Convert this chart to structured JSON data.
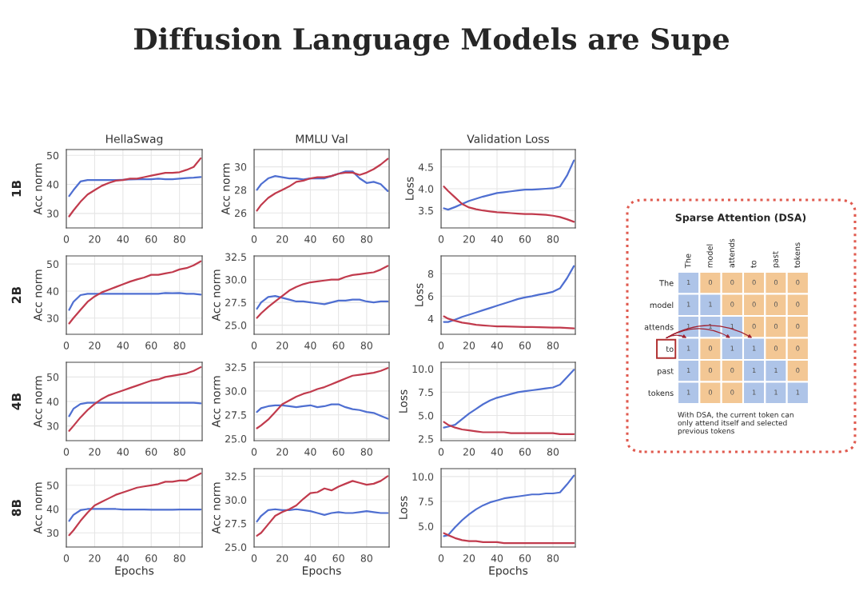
{
  "chart_data": [
    {
      "type": "other",
      "title": "Diffusion Language Models are Supe"
    },
    {
      "type": "line",
      "title": "HellaSwag",
      "ylabel": "Acc norm",
      "annotations": [
        "1B"
      ],
      "xlim": [
        0,
        96
      ],
      "xticks": [
        0,
        20,
        40,
        60,
        80
      ],
      "ylim": [
        25,
        52
      ],
      "yticks": [
        30,
        40,
        50
      ],
      "grid": true,
      "series": [
        {
          "color": "#4f6fd1",
          "x": [
            2,
            5,
            10,
            15,
            20,
            25,
            30,
            35,
            40,
            45,
            50,
            55,
            60,
            65,
            70,
            75,
            80,
            85,
            90,
            95
          ],
          "values": [
            36,
            38,
            41,
            41.5,
            41.5,
            41.5,
            41.5,
            41.5,
            41.6,
            41.7,
            41.8,
            41.8,
            41.8,
            42,
            41.8,
            41.8,
            42,
            42.2,
            42.3,
            42.5
          ]
        },
        {
          "color": "#c13b4d",
          "x": [
            2,
            5,
            10,
            15,
            20,
            25,
            30,
            35,
            40,
            45,
            50,
            55,
            60,
            65,
            70,
            75,
            80,
            85,
            90,
            95
          ],
          "values": [
            29,
            31,
            34,
            36.5,
            38,
            39.5,
            40.5,
            41.3,
            41.5,
            42,
            42,
            42.5,
            43,
            43.5,
            44,
            44,
            44.2,
            45,
            46,
            49
          ]
        }
      ]
    },
    {
      "type": "line",
      "title": "MMLU Val",
      "ylabel": "Acc norm",
      "xlim": [
        0,
        96
      ],
      "xticks": [
        0,
        20,
        40,
        60,
        80
      ],
      "ylim": [
        24.7,
        31.5
      ],
      "yticks": [
        26,
        28,
        30
      ],
      "grid": true,
      "series": [
        {
          "color": "#4f6fd1",
          "x": [
            2,
            5,
            10,
            15,
            20,
            25,
            30,
            35,
            40,
            45,
            50,
            55,
            60,
            65,
            70,
            75,
            80,
            85,
            90,
            95
          ],
          "values": [
            28.0,
            28.5,
            29.0,
            29.2,
            29.1,
            29.0,
            29.0,
            28.9,
            29.0,
            29.0,
            29.0,
            29.2,
            29.4,
            29.6,
            29.6,
            29.0,
            28.6,
            28.7,
            28.5,
            27.9
          ]
        },
        {
          "color": "#c13b4d",
          "x": [
            2,
            5,
            10,
            15,
            20,
            25,
            30,
            35,
            40,
            45,
            50,
            55,
            60,
            65,
            70,
            75,
            80,
            85,
            90,
            95
          ],
          "values": [
            26.2,
            26.7,
            27.3,
            27.7,
            28.0,
            28.3,
            28.7,
            28.8,
            29.0,
            29.1,
            29.1,
            29.2,
            29.4,
            29.5,
            29.5,
            29.3,
            29.5,
            29.8,
            30.2,
            30.7
          ]
        }
      ]
    },
    {
      "type": "line",
      "title": "Validation Loss",
      "ylabel": "Loss",
      "xlim": [
        0,
        96
      ],
      "xticks": [
        0,
        20,
        40,
        60,
        80
      ],
      "ylim": [
        3.1,
        4.9
      ],
      "yticks": [
        3.5,
        {
          "value": 4,
          "label": "4.0"
        },
        4.5
      ],
      "grid": true,
      "series": [
        {
          "color": "#4f6fd1",
          "x": [
            2,
            5,
            10,
            15,
            20,
            25,
            30,
            35,
            40,
            45,
            50,
            55,
            60,
            65,
            70,
            75,
            80,
            85,
            90,
            95
          ],
          "values": [
            3.55,
            3.52,
            3.58,
            3.65,
            3.72,
            3.77,
            3.82,
            3.86,
            3.9,
            3.92,
            3.94,
            3.96,
            3.98,
            3.98,
            3.99,
            4.0,
            4.01,
            4.05,
            4.3,
            4.65
          ]
        },
        {
          "color": "#c13b4d",
          "x": [
            2,
            5,
            10,
            15,
            20,
            25,
            30,
            35,
            40,
            45,
            50,
            55,
            60,
            65,
            70,
            75,
            80,
            85,
            90,
            95
          ],
          "values": [
            4.05,
            3.95,
            3.8,
            3.65,
            3.57,
            3.53,
            3.5,
            3.48,
            3.46,
            3.45,
            3.44,
            3.43,
            3.42,
            3.42,
            3.41,
            3.4,
            3.38,
            3.35,
            3.3,
            3.24
          ]
        }
      ]
    },
    {
      "type": "line",
      "ylabel": "Acc norm",
      "annotations": [
        "2B"
      ],
      "xlim": [
        0,
        96
      ],
      "xticks": [
        0,
        20,
        40,
        60,
        80
      ],
      "ylim": [
        24,
        53
      ],
      "yticks": [
        30,
        40,
        50
      ],
      "grid": true,
      "series": [
        {
          "color": "#4f6fd1",
          "x": [
            2,
            5,
            10,
            15,
            20,
            25,
            30,
            35,
            40,
            45,
            50,
            55,
            60,
            65,
            70,
            75,
            80,
            85,
            90,
            95
          ],
          "values": [
            33,
            36,
            38.5,
            39,
            39,
            39,
            39,
            39,
            39,
            39,
            39,
            39,
            39,
            39,
            39.3,
            39.2,
            39.3,
            39,
            39,
            38.7
          ]
        },
        {
          "color": "#c13b4d",
          "x": [
            2,
            5,
            10,
            15,
            20,
            25,
            30,
            35,
            40,
            45,
            50,
            55,
            60,
            65,
            70,
            75,
            80,
            85,
            90,
            95
          ],
          "values": [
            28,
            30,
            33,
            36,
            38,
            39.5,
            40.5,
            41.5,
            42.5,
            43.5,
            44.3,
            45,
            46,
            46,
            46.5,
            47,
            48,
            48.5,
            49.5,
            51
          ]
        }
      ]
    },
    {
      "type": "line",
      "ylabel": "Acc norm",
      "xlim": [
        0,
        96
      ],
      "xticks": [
        0,
        20,
        40,
        60,
        80
      ],
      "ylim": [
        24,
        32.6
      ],
      "yticks": [
        {
          "value": 25,
          "label": "25.0"
        },
        27.5,
        {
          "value": 30,
          "label": "30.0"
        },
        32.5
      ],
      "grid": true,
      "series": [
        {
          "color": "#4f6fd1",
          "x": [
            2,
            5,
            10,
            15,
            20,
            25,
            30,
            35,
            40,
            45,
            50,
            55,
            60,
            65,
            70,
            75,
            80,
            85,
            90,
            95
          ],
          "values": [
            26.8,
            27.5,
            28.1,
            28.2,
            28.0,
            27.8,
            27.6,
            27.6,
            27.5,
            27.4,
            27.3,
            27.5,
            27.7,
            27.7,
            27.8,
            27.8,
            27.6,
            27.5,
            27.6,
            27.6
          ]
        },
        {
          "color": "#c13b4d",
          "x": [
            2,
            5,
            10,
            15,
            20,
            25,
            30,
            35,
            40,
            45,
            50,
            55,
            60,
            65,
            70,
            75,
            80,
            85,
            90,
            95
          ],
          "values": [
            25.8,
            26.3,
            27.0,
            27.6,
            28.2,
            28.8,
            29.2,
            29.5,
            29.7,
            29.8,
            29.9,
            30.0,
            30.0,
            30.3,
            30.5,
            30.6,
            30.7,
            30.8,
            31.1,
            31.5
          ]
        }
      ]
    },
    {
      "type": "line",
      "ylabel": "Loss",
      "xlim": [
        0,
        96
      ],
      "xticks": [
        0,
        20,
        40,
        60,
        80
      ],
      "ylim": [
        2.6,
        9.6
      ],
      "yticks": [
        4,
        6,
        8
      ],
      "grid": true,
      "series": [
        {
          "color": "#4f6fd1",
          "x": [
            2,
            5,
            10,
            15,
            20,
            25,
            30,
            35,
            40,
            45,
            50,
            55,
            60,
            65,
            70,
            75,
            80,
            85,
            90,
            95
          ],
          "values": [
            3.7,
            3.7,
            3.9,
            4.15,
            4.35,
            4.55,
            4.75,
            4.95,
            5.15,
            5.35,
            5.55,
            5.75,
            5.9,
            6.0,
            6.15,
            6.25,
            6.4,
            6.7,
            7.6,
            8.7
          ]
        },
        {
          "color": "#c13b4d",
          "x": [
            2,
            5,
            10,
            15,
            20,
            25,
            30,
            35,
            40,
            45,
            50,
            55,
            60,
            65,
            70,
            75,
            80,
            85,
            90,
            95
          ],
          "values": [
            4.2,
            4.0,
            3.8,
            3.65,
            3.55,
            3.45,
            3.4,
            3.35,
            3.3,
            3.3,
            3.28,
            3.27,
            3.25,
            3.25,
            3.23,
            3.22,
            3.2,
            3.2,
            3.17,
            3.12
          ]
        }
      ]
    },
    {
      "type": "line",
      "ylabel": "Acc norm",
      "annotations": [
        "4B"
      ],
      "xlim": [
        0,
        96
      ],
      "xticks": [
        0,
        20,
        40,
        60,
        80
      ],
      "ylim": [
        24,
        56
      ],
      "yticks": [
        30,
        40,
        50
      ],
      "grid": true,
      "series": [
        {
          "color": "#4f6fd1",
          "x": [
            2,
            5,
            10,
            15,
            20,
            25,
            30,
            35,
            40,
            45,
            50,
            55,
            60,
            65,
            70,
            75,
            80,
            85,
            90,
            95
          ],
          "values": [
            34,
            37,
            39,
            39.5,
            39.5,
            39.5,
            39.5,
            39.5,
            39.5,
            39.5,
            39.5,
            39.5,
            39.5,
            39.5,
            39.5,
            39.5,
            39.5,
            39.5,
            39.5,
            39.2
          ]
        },
        {
          "color": "#c13b4d",
          "x": [
            2,
            5,
            10,
            15,
            20,
            25,
            30,
            35,
            40,
            45,
            50,
            55,
            60,
            65,
            70,
            75,
            80,
            85,
            90,
            95
          ],
          "values": [
            28,
            30,
            33.5,
            36.5,
            39,
            41,
            42.5,
            43.5,
            44.5,
            45.5,
            46.5,
            47.5,
            48.5,
            49,
            50,
            50.5,
            51,
            51.5,
            52.5,
            54
          ]
        }
      ]
    },
    {
      "type": "line",
      "ylabel": "Acc norm",
      "xlim": [
        0,
        96
      ],
      "xticks": [
        0,
        20,
        40,
        60,
        80
      ],
      "ylim": [
        24.8,
        33.0
      ],
      "yticks": [
        {
          "value": 25,
          "label": "25.0"
        },
        27.5,
        {
          "value": 30,
          "label": "30.0"
        },
        32.5
      ],
      "grid": true,
      "series": [
        {
          "color": "#4f6fd1",
          "x": [
            2,
            5,
            10,
            15,
            20,
            25,
            30,
            35,
            40,
            45,
            50,
            55,
            60,
            65,
            70,
            75,
            80,
            85,
            90,
            95
          ],
          "values": [
            27.8,
            28.2,
            28.4,
            28.5,
            28.5,
            28.4,
            28.3,
            28.4,
            28.5,
            28.3,
            28.4,
            28.6,
            28.6,
            28.3,
            28.1,
            28.0,
            27.8,
            27.7,
            27.4,
            27.1
          ]
        },
        {
          "color": "#c13b4d",
          "x": [
            2,
            5,
            10,
            15,
            20,
            25,
            30,
            35,
            40,
            45,
            50,
            55,
            60,
            65,
            70,
            75,
            80,
            85,
            90,
            95
          ],
          "values": [
            26.1,
            26.4,
            27.0,
            27.8,
            28.6,
            29.0,
            29.4,
            29.7,
            29.9,
            30.2,
            30.4,
            30.7,
            31.0,
            31.3,
            31.6,
            31.7,
            31.8,
            31.9,
            32.1,
            32.4
          ]
        }
      ]
    },
    {
      "type": "line",
      "ylabel": "Loss",
      "xlim": [
        0,
        96
      ],
      "xticks": [
        0,
        20,
        40,
        60,
        80
      ],
      "ylim": [
        2.3,
        10.7
      ],
      "yticks": [
        2.5,
        {
          "value": 5,
          "label": "5.0"
        },
        7.5,
        {
          "value": 10,
          "label": "10.0"
        }
      ],
      "grid": true,
      "series": [
        {
          "color": "#4f6fd1",
          "x": [
            2,
            5,
            10,
            15,
            20,
            25,
            30,
            35,
            40,
            45,
            50,
            55,
            60,
            65,
            70,
            75,
            80,
            85,
            90,
            95
          ],
          "values": [
            3.7,
            3.8,
            4.0,
            4.6,
            5.2,
            5.7,
            6.2,
            6.6,
            6.9,
            7.1,
            7.3,
            7.5,
            7.6,
            7.7,
            7.8,
            7.9,
            8.0,
            8.3,
            9.1,
            9.9
          ]
        },
        {
          "color": "#c13b4d",
          "x": [
            2,
            5,
            10,
            15,
            20,
            25,
            30,
            35,
            40,
            45,
            50,
            55,
            60,
            65,
            70,
            75,
            80,
            85,
            90,
            95
          ],
          "values": [
            4.3,
            4.0,
            3.7,
            3.5,
            3.4,
            3.3,
            3.2,
            3.2,
            3.2,
            3.2,
            3.1,
            3.1,
            3.1,
            3.1,
            3.1,
            3.1,
            3.1,
            3.0,
            3.0,
            3.0
          ]
        }
      ]
    },
    {
      "type": "line",
      "ylabel": "Acc norm",
      "xlabel": "Epochs",
      "annotations": [
        "8B"
      ],
      "xlim": [
        0,
        96
      ],
      "xticks": [
        0,
        20,
        40,
        60,
        80
      ],
      "ylim": [
        24,
        57
      ],
      "yticks": [
        30,
        40,
        50
      ],
      "grid": true,
      "series": [
        {
          "color": "#4f6fd1",
          "x": [
            2,
            5,
            10,
            15,
            20,
            25,
            30,
            35,
            40,
            45,
            50,
            55,
            60,
            65,
            70,
            75,
            80,
            85,
            90,
            95
          ],
          "values": [
            35,
            37.5,
            39.5,
            40,
            40,
            40,
            40,
            40,
            39.8,
            39.8,
            39.8,
            39.8,
            39.7,
            39.7,
            39.7,
            39.7,
            39.8,
            39.8,
            39.8,
            39.8
          ]
        },
        {
          "color": "#c13b4d",
          "x": [
            2,
            5,
            10,
            15,
            20,
            25,
            30,
            35,
            40,
            45,
            50,
            55,
            60,
            65,
            70,
            75,
            80,
            85,
            90,
            95
          ],
          "values": [
            29,
            31,
            35,
            38.5,
            41.5,
            43,
            44.5,
            46,
            47,
            48,
            49,
            49.5,
            50,
            50.5,
            51.5,
            51.5,
            52,
            52,
            53.5,
            55
          ]
        }
      ]
    },
    {
      "type": "line",
      "ylabel": "Acc norm",
      "xlabel": "Epochs",
      "xlim": [
        0,
        96
      ],
      "xticks": [
        0,
        20,
        40,
        60,
        80
      ],
      "ylim": [
        25.0,
        33.3
      ],
      "yticks": [
        {
          "value": 25,
          "label": "25.0"
        },
        27.5,
        {
          "value": 30,
          "label": "30.0"
        },
        32.5
      ],
      "grid": true,
      "series": [
        {
          "color": "#4f6fd1",
          "x": [
            2,
            5,
            10,
            15,
            20,
            25,
            30,
            35,
            40,
            45,
            50,
            55,
            60,
            65,
            70,
            75,
            80,
            85,
            90,
            95
          ],
          "values": [
            27.7,
            28.3,
            28.9,
            29.0,
            28.9,
            28.9,
            29.0,
            28.9,
            28.8,
            28.6,
            28.4,
            28.6,
            28.7,
            28.6,
            28.6,
            28.7,
            28.8,
            28.7,
            28.6,
            28.6
          ]
        },
        {
          "color": "#c13b4d",
          "x": [
            2,
            5,
            10,
            15,
            20,
            25,
            30,
            35,
            40,
            45,
            50,
            55,
            60,
            65,
            70,
            75,
            80,
            85,
            90,
            95
          ],
          "values": [
            26.2,
            26.5,
            27.4,
            28.3,
            28.7,
            29.0,
            29.4,
            30.1,
            30.7,
            30.8,
            31.2,
            31.0,
            31.4,
            31.7,
            32.0,
            31.8,
            31.6,
            31.7,
            32.0,
            32.5
          ]
        }
      ]
    },
    {
      "type": "line",
      "ylabel": "Loss",
      "xlabel": "Epochs",
      "xlim": [
        0,
        96
      ],
      "xticks": [
        0,
        20,
        40,
        60,
        80
      ],
      "ylim": [
        2.9,
        10.8
      ],
      "yticks": [
        {
          "value": 5,
          "label": "5.0"
        },
        7.5,
        {
          "value": 10,
          "label": "10.0"
        }
      ],
      "grid": true,
      "series": [
        {
          "color": "#4f6fd1",
          "x": [
            2,
            5,
            10,
            15,
            20,
            25,
            30,
            35,
            40,
            45,
            50,
            55,
            60,
            65,
            70,
            75,
            80,
            85,
            90,
            95
          ],
          "values": [
            4.0,
            4.1,
            4.9,
            5.6,
            6.2,
            6.7,
            7.1,
            7.4,
            7.6,
            7.8,
            7.9,
            8.0,
            8.1,
            8.2,
            8.2,
            8.3,
            8.3,
            8.4,
            9.2,
            10.1
          ]
        },
        {
          "color": "#c13b4d",
          "x": [
            2,
            5,
            10,
            15,
            20,
            25,
            30,
            35,
            40,
            45,
            50,
            55,
            60,
            65,
            70,
            75,
            80,
            85,
            90,
            95
          ],
          "values": [
            4.3,
            4.1,
            3.8,
            3.6,
            3.5,
            3.5,
            3.4,
            3.4,
            3.4,
            3.3,
            3.3,
            3.3,
            3.3,
            3.3,
            3.3,
            3.3,
            3.3,
            3.3,
            3.3,
            3.3
          ]
        }
      ]
    },
    {
      "type": "heatmap",
      "title": "Sparse Attention (DSA)",
      "categories": [
        "The",
        "model",
        "attends",
        "to",
        "past",
        "tokens"
      ],
      "y_categories": [
        "The",
        "model",
        "attends",
        "to",
        "past",
        "tokens"
      ],
      "colors": [
        "#f3c794",
        "#aec4e8"
      ],
      "data_labels": true,
      "annotations": [
        "With DSA, the current token can only attend itself and selected previous tokens"
      ],
      "cells": [
        [
          1,
          0,
          0,
          0,
          0,
          0
        ],
        [
          1,
          1,
          0,
          0,
          0,
          0
        ],
        [
          1,
          1,
          1,
          0,
          0,
          0
        ],
        [
          1,
          0,
          1,
          1,
          0,
          0
        ],
        [
          1,
          0,
          0,
          1,
          1,
          0
        ],
        [
          1,
          0,
          0,
          1,
          1,
          1
        ]
      ]
    }
  ]
}
